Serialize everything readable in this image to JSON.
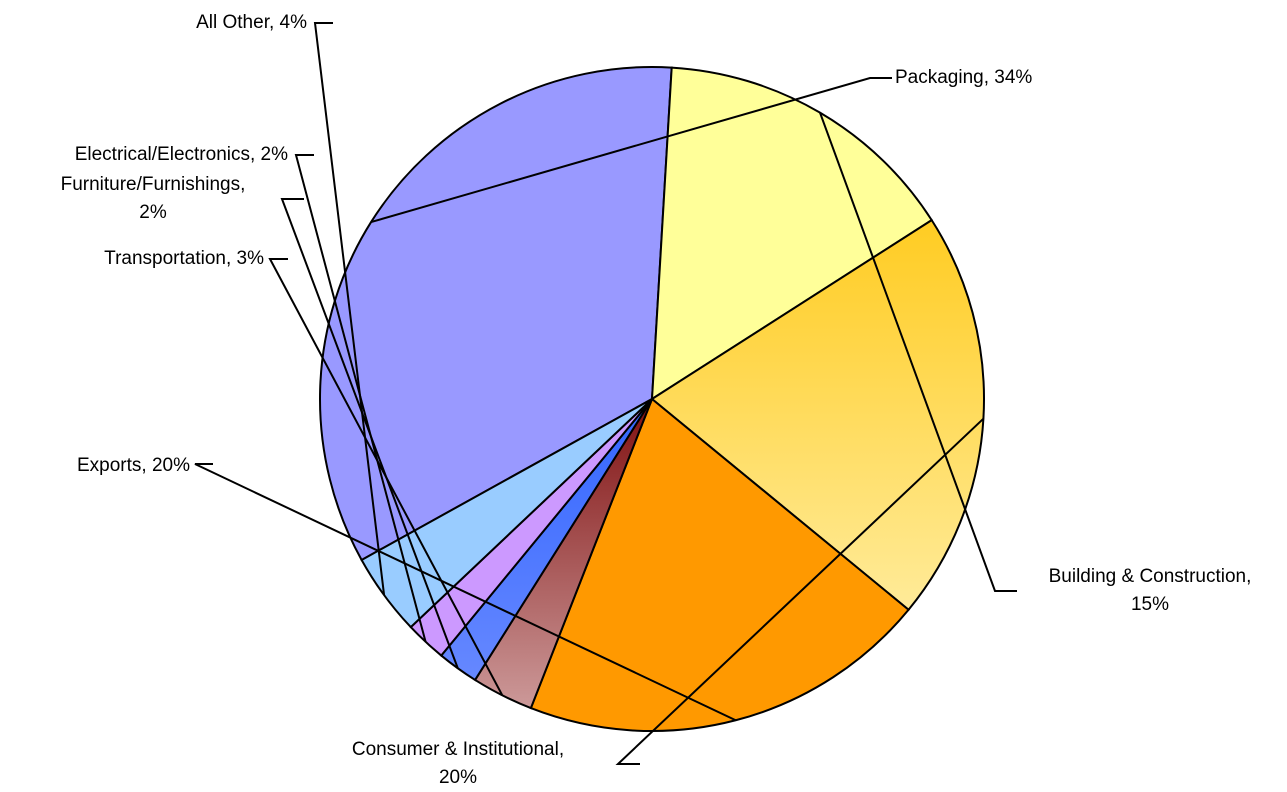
{
  "chart_data": {
    "type": "pie",
    "title": "",
    "slices": [
      {
        "label": "Packaging, 34%",
        "lines": [
          "Packaging, 34%"
        ],
        "value": 34,
        "color": "#9999ff"
      },
      {
        "label": "Building & Construction, 15%",
        "lines": [
          "Building & Construction,",
          "15%"
        ],
        "value": 15,
        "color": "#ffff99"
      },
      {
        "label": "Consumer & Institutional, 20%",
        "lines": [
          "Consumer & Institutional,",
          "20%"
        ],
        "value": 20,
        "color": "#ffd966",
        "gradient": [
          "#ffcc22",
          "#ffeb99"
        ]
      },
      {
        "label": "Exports, 20%",
        "lines": [
          "Exports, 20%"
        ],
        "value": 20,
        "color": "#ff9900"
      },
      {
        "label": "Transportation, 3%",
        "lines": [
          "Transportation, 3%"
        ],
        "value": 3,
        "color": "#bb8888",
        "gradient": [
          "#801010",
          "#cc9999"
        ]
      },
      {
        "label": "Furniture/Furnishings, 2%",
        "lines": [
          "Furniture/Furnishings,",
          "2%"
        ],
        "value": 2,
        "color": "#3366ff",
        "gradient": [
          "#3366ff",
          "#6688ff"
        ]
      },
      {
        "label": "Electrical/Electronics, 2%",
        "lines": [
          "Electrical/Electronics, 2%"
        ],
        "value": 2,
        "color": "#cc99ff"
      },
      {
        "label": "All Other, 4%",
        "lines": [
          "All Other, 4%"
        ],
        "value": 4,
        "color": "#99ccff"
      }
    ]
  }
}
